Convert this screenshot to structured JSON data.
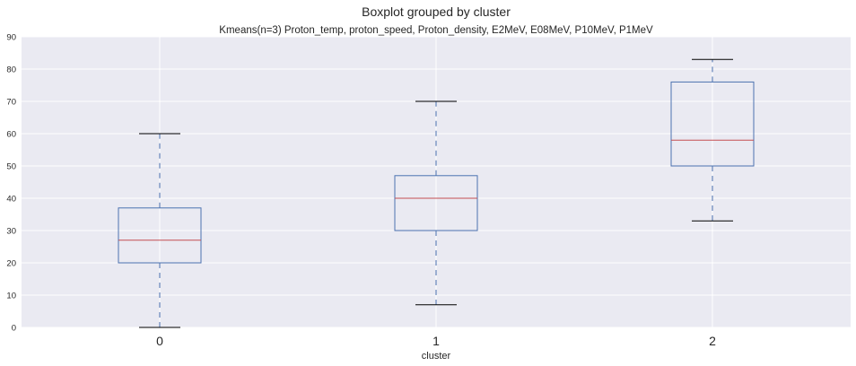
{
  "chart_data": {
    "type": "boxplot",
    "suptitle": "Boxplot grouped by cluster",
    "title": "Kmeans(n=3) Proton_temp, proton_speed, Proton_density, E2MeV, E08MeV, P10MeV, P1MeV",
    "xlabel": "cluster",
    "ylabel": "",
    "categories": [
      "0",
      "1",
      "2"
    ],
    "ylim": [
      0,
      90
    ],
    "yticks": [
      0,
      10,
      20,
      30,
      40,
      50,
      60,
      70,
      80,
      90
    ],
    "grid": true,
    "boxes": [
      {
        "category": "0",
        "whisker_low": 0,
        "q1": 20,
        "median": 27,
        "q3": 37,
        "whisker_high": 60
      },
      {
        "category": "1",
        "whisker_low": 7,
        "q1": 30,
        "median": 40,
        "q3": 47,
        "whisker_high": 70
      },
      {
        "category": "2",
        "whisker_low": 33,
        "q1": 50,
        "median": 58,
        "q3": 76,
        "whisker_high": 83
      }
    ],
    "colors": {
      "background": "#eaeaf2",
      "grid": "#ffffff",
      "box": "#4c72b0",
      "median": "#c44e52",
      "cap": "#000000",
      "whisker": "#4c72b0"
    }
  }
}
